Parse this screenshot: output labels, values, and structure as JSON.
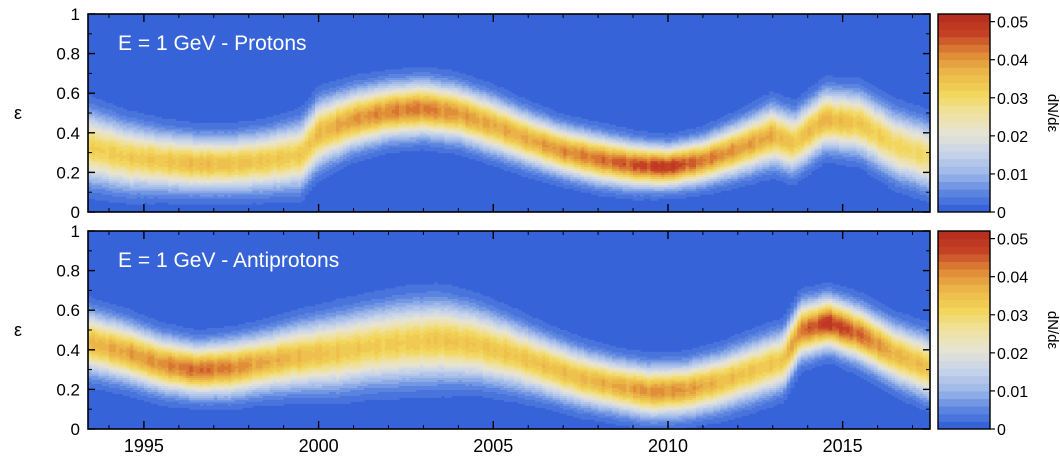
{
  "chart_data": {
    "type": "heatmap",
    "x_range": [
      1993.4,
      2017.5
    ],
    "x_ticks": [
      "1995",
      "2000",
      "2005",
      "2010",
      "2015"
    ],
    "x_tick_values": [
      1995,
      2000,
      2005,
      2010,
      2015
    ],
    "colorbar": {
      "label": "dN/dε",
      "range": [
        0,
        0.052
      ],
      "ticks": [
        "0",
        "0.01",
        "0.02",
        "0.03",
        "0.04",
        "0.05"
      ],
      "tick_values": [
        0,
        0.01,
        0.02,
        0.03,
        0.04,
        0.05
      ],
      "levels": 26,
      "colors": [
        "#2e5bd6",
        "#5d86e0",
        "#9eb8e8",
        "#c8d4ea",
        "#e6e3d4",
        "#f0e2a0",
        "#f2d55a",
        "#ecb94a",
        "#de8a36",
        "#c64226",
        "#b22a1d"
      ]
    },
    "panels": [
      {
        "title": "E = 1 GeV - Protons",
        "ylabel": "ε",
        "ylim": [
          0,
          1
        ],
        "y_ticks": [
          "0",
          "0.2",
          "0.4",
          "0.6",
          "0.8",
          "1"
        ],
        "y_tick_values": [
          0,
          0.2,
          0.4,
          0.6,
          0.8,
          1
        ],
        "ridge": {
          "x": [
            1993.4,
            1994.5,
            1995.5,
            1996.5,
            1997.5,
            1998.5,
            1999.5,
            2000.0,
            2001.0,
            2002.0,
            2003.0,
            2004.0,
            2005.0,
            2006.0,
            2007.0,
            2008.0,
            2009.0,
            2010.0,
            2011.0,
            2012.0,
            2013.0,
            2013.6,
            2014.5,
            2015.5,
            2016.5,
            2017.5
          ],
          "center": [
            0.33,
            0.28,
            0.26,
            0.245,
            0.245,
            0.26,
            0.29,
            0.4,
            0.47,
            0.51,
            0.525,
            0.5,
            0.44,
            0.37,
            0.31,
            0.27,
            0.24,
            0.23,
            0.26,
            0.32,
            0.39,
            0.35,
            0.47,
            0.45,
            0.34,
            0.28
          ],
          "peak": [
            0.032,
            0.033,
            0.034,
            0.036,
            0.035,
            0.034,
            0.033,
            0.036,
            0.04,
            0.042,
            0.043,
            0.04,
            0.038,
            0.038,
            0.041,
            0.043,
            0.046,
            0.049,
            0.043,
            0.04,
            0.038,
            0.034,
            0.037,
            0.034,
            0.031,
            0.03
          ],
          "sigma": [
            0.11,
            0.1,
            0.09,
            0.085,
            0.085,
            0.09,
            0.1,
            0.1,
            0.09,
            0.085,
            0.085,
            0.085,
            0.085,
            0.08,
            0.075,
            0.075,
            0.07,
            0.065,
            0.07,
            0.08,
            0.09,
            0.09,
            0.09,
            0.095,
            0.1,
            0.1
          ]
        }
      },
      {
        "title": "E = 1 GeV - Antiprotons",
        "ylabel": "ε",
        "ylim": [
          0,
          1
        ],
        "y_ticks": [
          "0",
          "0.2",
          "0.4",
          "0.6",
          "0.8",
          "1"
        ],
        "y_tick_values": [
          0,
          0.2,
          0.4,
          0.6,
          0.8,
          1
        ],
        "ridge": {
          "x": [
            1993.4,
            1994.5,
            1995.5,
            1996.5,
            1997.5,
            1998.5,
            1999.5,
            2000.5,
            2001.5,
            2002.5,
            2003.5,
            2004.5,
            2005.5,
            2006.5,
            2007.5,
            2008.5,
            2009.5,
            2010.5,
            2011.5,
            2012.5,
            2013.3,
            2013.8,
            2014.6,
            2015.5,
            2016.5,
            2017.5
          ],
          "center": [
            0.44,
            0.39,
            0.33,
            0.3,
            0.31,
            0.34,
            0.37,
            0.39,
            0.42,
            0.44,
            0.45,
            0.43,
            0.38,
            0.32,
            0.26,
            0.22,
            0.19,
            0.2,
            0.24,
            0.3,
            0.35,
            0.5,
            0.54,
            0.48,
            0.38,
            0.31
          ],
          "peak": [
            0.036,
            0.039,
            0.041,
            0.044,
            0.042,
            0.038,
            0.036,
            0.034,
            0.033,
            0.033,
            0.034,
            0.034,
            0.034,
            0.035,
            0.036,
            0.038,
            0.041,
            0.04,
            0.036,
            0.034,
            0.034,
            0.043,
            0.049,
            0.044,
            0.037,
            0.035
          ],
          "sigma": [
            0.095,
            0.09,
            0.085,
            0.08,
            0.085,
            0.09,
            0.1,
            0.11,
            0.115,
            0.12,
            0.12,
            0.11,
            0.1,
            0.09,
            0.085,
            0.08,
            0.08,
            0.08,
            0.085,
            0.09,
            0.09,
            0.085,
            0.08,
            0.085,
            0.09,
            0.095
          ]
        }
      }
    ]
  }
}
